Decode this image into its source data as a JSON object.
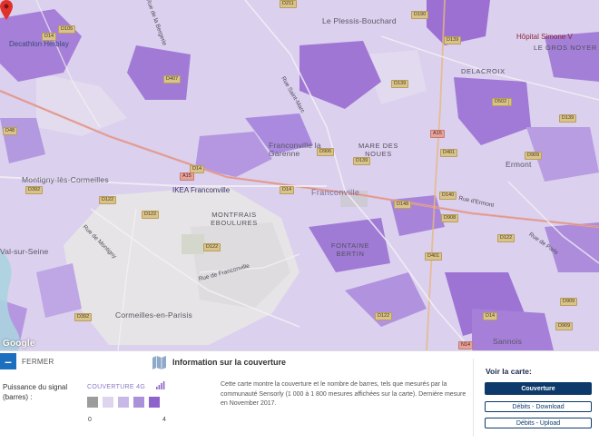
{
  "map": {
    "places": {
      "herblay": "Decathlon Herblay",
      "plessis": "Le Plessis-Bouchard",
      "hopital": "Hôpital Simone V",
      "gros_noyer": "LE GROS NOYER",
      "delacroix": "DELACROIX",
      "franconville_garenne": "Franconville la Garenne",
      "mare_noues": "MARE DES NOUES",
      "ermont": "Ermont",
      "montigny": "Montigny-lès-Cormeilles",
      "ikea": "IKEA Franconville",
      "franconville": "Franconville",
      "montfrais": "MONTFRAIS EBOULURES",
      "fontaine": "FONTAINE BERTIN",
      "seine": "Val-sur-Seine",
      "cormeilles": "Cormeilles-en-Parisis",
      "sannois": "Sannois"
    },
    "streets": {
      "bergeronnettes": "Rue de la Bergerie",
      "paris": "Rue de Paris",
      "ermont": "Rue d'Ermont",
      "montigny": "Rue de Montigny",
      "franconville_rd": "Rue de Franconville",
      "saint_marc": "Rue Saint-Marc"
    },
    "roads": [
      "D105",
      "D14",
      "D190",
      "D139",
      "D211",
      "D48",
      "D407",
      "D909",
      "D14",
      "D392",
      "D122",
      "D502",
      "D122",
      "D392",
      "D14",
      "D906",
      "D139",
      "D122",
      "D401",
      "D908",
      "D140",
      "D909",
      "D14",
      "D401",
      "D122",
      "D502",
      "D148",
      "D139",
      "D122",
      "D909",
      "A15",
      "A15",
      "N14",
      "D139"
    ],
    "attribution": "Google"
  },
  "panel": {
    "close_label": "FERMER",
    "signal_title": "Puissance du signal (barres) :",
    "coverage_label": "COUVERTURE 4G",
    "scale_min": "0",
    "scale_max": "4",
    "swatch_colors": [
      "#9c9c9c",
      "#ddd4ef",
      "#c8b8e8",
      "#ab91da",
      "#8e63cc"
    ],
    "info_title": "Information sur la couverture",
    "info_text": "Cette carte montre la couverture et le nombre de barres, tels que mesurés par la communauté Sensorly (1 000 à 1 800 mesures affichées sur la carte). Dernière mesure en November 2017.",
    "voir_title": "Voir la carte:",
    "btn_coverage": "Couverture",
    "btn_download": "Débits - Download",
    "btn_upload": "Débits - Upload"
  },
  "colors": {
    "accent": "#1c6fbf",
    "primary_button": "#0d3a6a",
    "coverage_light": "#d9ccf0",
    "coverage_strong": "#8b5fd0",
    "pin": "#e0312a"
  }
}
